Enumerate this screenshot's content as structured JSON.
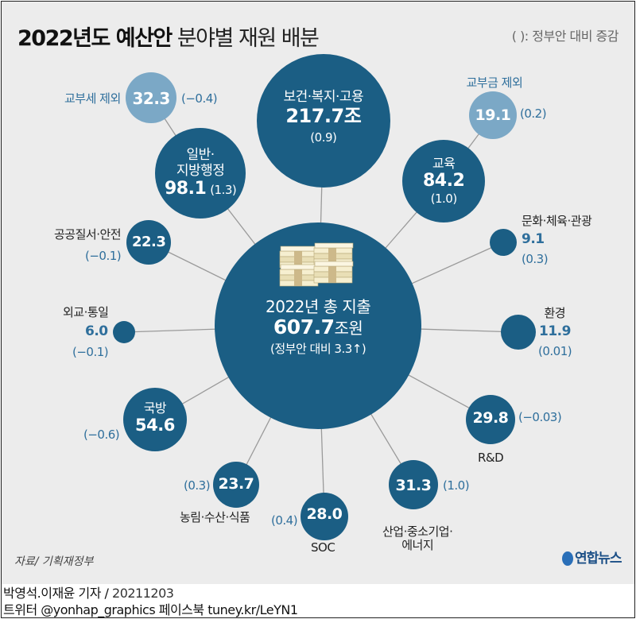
{
  "title": {
    "bold": "2022년도 예산안",
    "light": "분야별 재원 배분"
  },
  "legend": "(  ): 정부안 대비 증감",
  "colors": {
    "dark": "#1b5e84",
    "light": "#7ba8c6",
    "blue_text": "#2f6f9c",
    "background": "#ececec",
    "line": "#9a9a9a"
  },
  "center": {
    "icon": "money-stack-icon",
    "label": "2022년 총 지출",
    "value": "607.7",
    "unit": "조원",
    "change": "(정부안 대비 3.3",
    "change_icon": "arrow-up-icon",
    "change_end": ")"
  },
  "bubbles": [
    {
      "id": "health",
      "label": "보건·복지·고용",
      "value": "217.7조",
      "change": "(0.9)"
    },
    {
      "id": "general",
      "label": "일반·\n지방행정",
      "value": "98.1",
      "change": "(1.3)"
    },
    {
      "id": "general-excl",
      "label": "교부세 제외",
      "value": "32.3",
      "change": "(−0.4)"
    },
    {
      "id": "education",
      "label": "교육",
      "value": "84.2",
      "change": "(1.0)"
    },
    {
      "id": "education-excl",
      "label": "교부금 제외",
      "value": "19.1",
      "change": "(0.2)"
    },
    {
      "id": "public-order",
      "label": "공공질서·안전",
      "value": "22.3",
      "change": "(−0.1)"
    },
    {
      "id": "culture",
      "label": "문화·체육·관광",
      "value": "9.1",
      "change": "(0.3)"
    },
    {
      "id": "diplomacy",
      "label": "외교·통일",
      "value": "6.0",
      "change": "(−0.1)"
    },
    {
      "id": "environment",
      "label": "환경",
      "value": "11.9",
      "change": "(0.01)"
    },
    {
      "id": "defense",
      "label": "국방",
      "value": "54.6",
      "change": "(−0.6)"
    },
    {
      "id": "rnd",
      "label": "R&D",
      "value": "29.8",
      "change": "(−0.03)"
    },
    {
      "id": "agriculture",
      "label": "농림·수산·식품",
      "value": "23.7",
      "change": "(0.3)"
    },
    {
      "id": "soc",
      "label": "SOC",
      "value": "28.0",
      "change": "(0.4)"
    },
    {
      "id": "industry",
      "label": "산업·중소기업·\n에너지",
      "value": "31.3",
      "change": "(1.0)"
    }
  ],
  "source": "자료/ 기획재정부",
  "logo": "연합뉴스",
  "credit": {
    "reporters": "박영석.이재윤 기자 /",
    "date": "20211203",
    "social": "트위터 @yonhap_graphics  페이스북 tuney.kr/LeYN1"
  }
}
